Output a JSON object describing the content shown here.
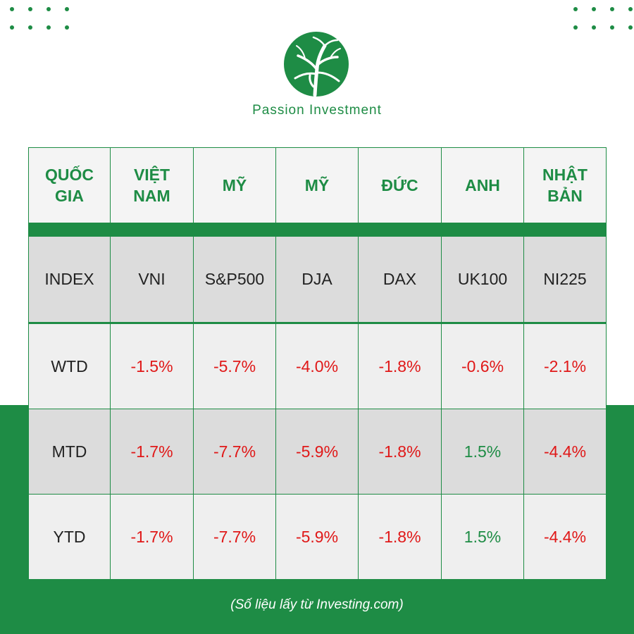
{
  "brand": {
    "name": "Passion Investment",
    "logo_icon": "tree-logo-icon",
    "color": "#1e8c45"
  },
  "colors": {
    "accent": "#1e8c45",
    "negative": "#e01818",
    "positive": "#1e8c45"
  },
  "chart_data": {
    "type": "table",
    "columns": [
      "QUỐC GIA",
      "VIỆT NAM",
      "MỸ",
      "MỸ",
      "ĐỨC",
      "ANH",
      "NHẬT BẢN"
    ],
    "index_row": [
      "INDEX",
      "VNI",
      "S&P500",
      "DJA",
      "DAX",
      "UK100",
      "NI225"
    ],
    "rows": [
      {
        "label": "WTD",
        "values": [
          "-1.5%",
          "-5.7%",
          "-4.0%",
          "-1.8%",
          "-0.6%",
          "-2.1%"
        ]
      },
      {
        "label": "MTD",
        "values": [
          "-1.7%",
          "-7.7%",
          "-5.9%",
          "-1.8%",
          "1.5%",
          "-4.4%"
        ]
      },
      {
        "label": "YTD",
        "values": [
          "-1.7%",
          "-7.7%",
          "-5.9%",
          "-1.8%",
          "1.5%",
          "-4.4%"
        ]
      }
    ]
  },
  "footer": {
    "source": "(Số liệu lấy từ Investing.com)"
  }
}
